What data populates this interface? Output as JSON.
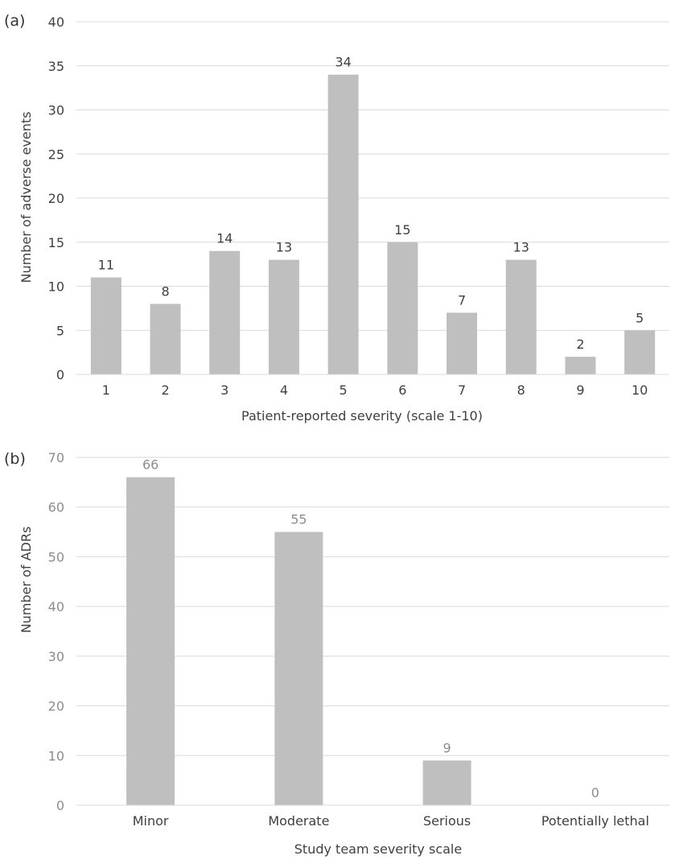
{
  "chart_data": [
    {
      "panel_label": "(a)",
      "type": "bar",
      "categories": [
        "1",
        "2",
        "3",
        "4",
        "5",
        "6",
        "7",
        "8",
        "9",
        "10"
      ],
      "values": [
        11,
        8,
        14,
        13,
        34,
        15,
        7,
        13,
        2,
        5
      ],
      "data_labels": [
        "11",
        "8",
        "14",
        "13",
        "34",
        "15",
        "7",
        "13",
        "2",
        "5"
      ],
      "xlabel": "Patient-reported severity (scale 1-10)",
      "ylabel": "Number of adverse events",
      "ylim": [
        0,
        40
      ],
      "yticks": [
        "0",
        "5",
        "10",
        "15",
        "20",
        "25",
        "30",
        "35",
        "40"
      ],
      "grid": true,
      "bar_color": "#bfbfbf",
      "grid_color": "#d9d9d9"
    },
    {
      "panel_label": "(b)",
      "type": "bar",
      "categories": [
        "Minor",
        "Moderate",
        "Serious",
        "Potentially lethal"
      ],
      "values": [
        66,
        55,
        9,
        0
      ],
      "data_labels": [
        "66",
        "55",
        "9",
        "0"
      ],
      "xlabel": "Study team severity scale",
      "ylabel": "Number of ADRs",
      "ylim": [
        0,
        70
      ],
      "yticks": [
        "0",
        "10",
        "20",
        "30",
        "40",
        "50",
        "60",
        "70"
      ],
      "grid": true,
      "bar_color": "#bfbfbf",
      "grid_color": "#d9d9d9"
    }
  ]
}
